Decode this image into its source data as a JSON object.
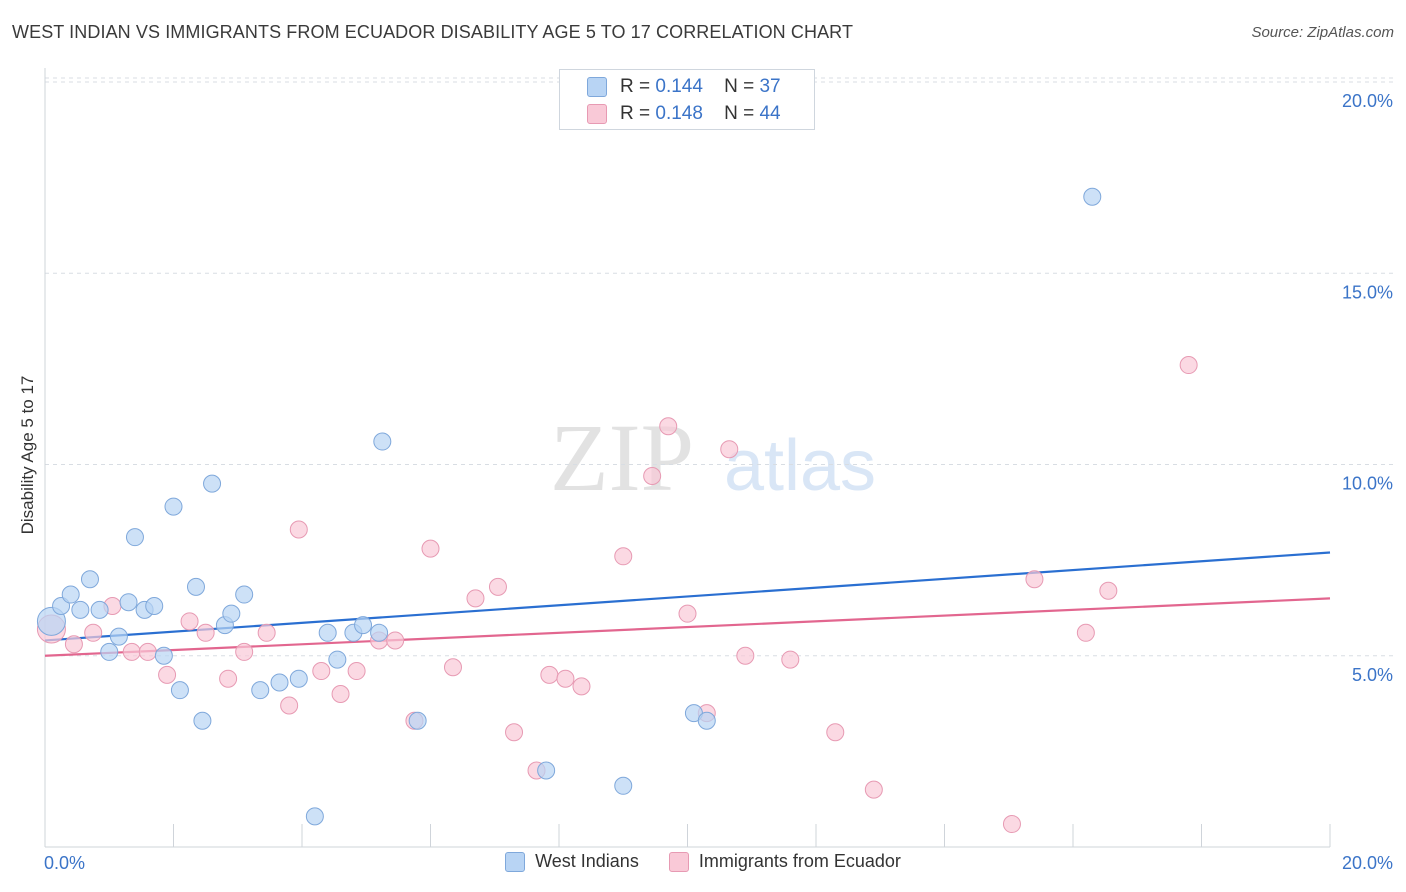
{
  "title": "WEST INDIAN VS IMMIGRANTS FROM ECUADOR DISABILITY AGE 5 TO 17 CORRELATION CHART",
  "source": "Source: ZipAtlas.com",
  "watermark": {
    "zip": "ZIP",
    "atlas": "atlas"
  },
  "colors": {
    "blue_fill": "#b8d4f4",
    "blue_stroke": "#7fa8db",
    "blue_line": "#2a6fd1",
    "pink_fill": "#f9c9d7",
    "pink_stroke": "#e79ab3",
    "pink_line": "#e2668f",
    "tick_label": "#3b74c8",
    "grid": "#d8dde3"
  },
  "stats": {
    "blue": {
      "r_label": "R =",
      "r": "0.144",
      "n_label": "N =",
      "n": "37"
    },
    "pink": {
      "r_label": "R =",
      "r": "0.148",
      "n_label": "N =",
      "n": "44"
    }
  },
  "chart_data": {
    "type": "scatter",
    "title": "WEST INDIAN VS IMMIGRANTS FROM ECUADOR DISABILITY AGE 5 TO 17 CORRELATION CHART",
    "xlabel": "",
    "ylabel": "Disability Age 5 to 17",
    "xlim": [
      0,
      20
    ],
    "ylim": [
      0,
      20
    ],
    "x_tick_labels": [
      "0.0%",
      "20.0%"
    ],
    "y_ticks": [
      5,
      10,
      15,
      20
    ],
    "y_tick_labels": [
      "5.0%",
      "10.0%",
      "15.0%",
      "20.0%"
    ],
    "legend": [
      "West Indians",
      "Immigrants from Ecuador"
    ],
    "series": [
      {
        "name": "West Indians",
        "trend": {
          "x": [
            0,
            20
          ],
          "y": [
            5.4,
            7.7
          ]
        },
        "points": [
          {
            "x": 0.1,
            "y": 5.9,
            "big": true
          },
          {
            "x": 0.25,
            "y": 6.3
          },
          {
            "x": 0.4,
            "y": 6.6
          },
          {
            "x": 0.55,
            "y": 6.2
          },
          {
            "x": 0.7,
            "y": 7.0
          },
          {
            "x": 0.85,
            "y": 6.2
          },
          {
            "x": 1.0,
            "y": 5.1
          },
          {
            "x": 1.15,
            "y": 5.5
          },
          {
            "x": 1.3,
            "y": 6.4
          },
          {
            "x": 1.4,
            "y": 8.1
          },
          {
            "x": 1.55,
            "y": 6.2
          },
          {
            "x": 1.7,
            "y": 6.3
          },
          {
            "x": 1.85,
            "y": 5.0
          },
          {
            "x": 2.0,
            "y": 8.9
          },
          {
            "x": 2.1,
            "y": 4.1
          },
          {
            "x": 2.35,
            "y": 6.8
          },
          {
            "x": 2.45,
            "y": 3.3
          },
          {
            "x": 2.6,
            "y": 9.5
          },
          {
            "x": 2.8,
            "y": 5.8
          },
          {
            "x": 2.9,
            "y": 6.1
          },
          {
            "x": 3.1,
            "y": 6.6
          },
          {
            "x": 3.35,
            "y": 4.1
          },
          {
            "x": 3.65,
            "y": 4.3
          },
          {
            "x": 3.95,
            "y": 4.4
          },
          {
            "x": 4.2,
            "y": 0.8
          },
          {
            "x": 4.4,
            "y": 5.6
          },
          {
            "x": 4.55,
            "y": 4.9
          },
          {
            "x": 4.8,
            "y": 5.6
          },
          {
            "x": 4.95,
            "y": 5.8
          },
          {
            "x": 5.2,
            "y": 5.6
          },
          {
            "x": 5.25,
            "y": 10.6
          },
          {
            "x": 5.8,
            "y": 3.3
          },
          {
            "x": 7.8,
            "y": 2.0
          },
          {
            "x": 9.0,
            "y": 1.6
          },
          {
            "x": 10.1,
            "y": 3.5
          },
          {
            "x": 10.3,
            "y": 3.3
          },
          {
            "x": 16.3,
            "y": 17.0
          }
        ]
      },
      {
        "name": "Immigrants from Ecuador",
        "trend": {
          "x": [
            0,
            20
          ],
          "y": [
            5.0,
            6.5
          ]
        },
        "points": [
          {
            "x": 0.1,
            "y": 5.7,
            "big": true
          },
          {
            "x": 0.45,
            "y": 5.3
          },
          {
            "x": 0.75,
            "y": 5.6
          },
          {
            "x": 1.05,
            "y": 6.3
          },
          {
            "x": 1.35,
            "y": 5.1
          },
          {
            "x": 1.6,
            "y": 5.1
          },
          {
            "x": 1.9,
            "y": 4.5
          },
          {
            "x": 2.25,
            "y": 5.9
          },
          {
            "x": 2.5,
            "y": 5.6
          },
          {
            "x": 2.85,
            "y": 4.4
          },
          {
            "x": 3.1,
            "y": 5.1
          },
          {
            "x": 3.45,
            "y": 5.6
          },
          {
            "x": 3.8,
            "y": 3.7
          },
          {
            "x": 3.95,
            "y": 8.3
          },
          {
            "x": 4.3,
            "y": 4.6
          },
          {
            "x": 4.6,
            "y": 4.0
          },
          {
            "x": 4.85,
            "y": 4.6
          },
          {
            "x": 5.2,
            "y": 5.4
          },
          {
            "x": 5.45,
            "y": 5.4
          },
          {
            "x": 5.75,
            "y": 3.3
          },
          {
            "x": 6.0,
            "y": 7.8
          },
          {
            "x": 6.35,
            "y": 4.7
          },
          {
            "x": 6.7,
            "y": 6.5
          },
          {
            "x": 7.05,
            "y": 6.8
          },
          {
            "x": 7.3,
            "y": 3.0
          },
          {
            "x": 7.65,
            "y": 2.0
          },
          {
            "x": 7.85,
            "y": 4.5
          },
          {
            "x": 8.1,
            "y": 4.4
          },
          {
            "x": 8.35,
            "y": 4.2
          },
          {
            "x": 9.0,
            "y": 7.6
          },
          {
            "x": 9.45,
            "y": 9.7
          },
          {
            "x": 9.7,
            "y": 11.0
          },
          {
            "x": 10.0,
            "y": 6.1
          },
          {
            "x": 10.3,
            "y": 3.5
          },
          {
            "x": 10.65,
            "y": 10.4
          },
          {
            "x": 10.9,
            "y": 5.0
          },
          {
            "x": 11.6,
            "y": 4.9
          },
          {
            "x": 12.3,
            "y": 3.0
          },
          {
            "x": 12.9,
            "y": 1.5
          },
          {
            "x": 15.05,
            "y": 0.6
          },
          {
            "x": 15.4,
            "y": 7.0
          },
          {
            "x": 16.2,
            "y": 5.6
          },
          {
            "x": 16.55,
            "y": 6.7
          },
          {
            "x": 17.8,
            "y": 12.6
          }
        ]
      }
    ]
  }
}
